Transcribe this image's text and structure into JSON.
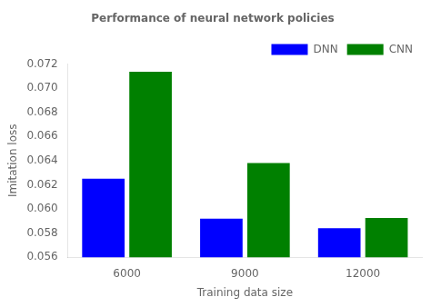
{
  "chart_data": {
    "type": "bar",
    "title": "Performance of neural network policies",
    "xlabel": "Training data size",
    "ylabel": "Imitation loss",
    "categories": [
      "6000",
      "9000",
      "12000"
    ],
    "series": [
      {
        "name": "DNN",
        "color": "#0000ff",
        "values": [
          0.0625,
          0.0592,
          0.0584
        ]
      },
      {
        "name": "CNN",
        "color": "#008000",
        "values": [
          0.07135,
          0.0638,
          0.05925
        ]
      }
    ],
    "ylim": [
      0.056,
      0.072
    ],
    "yticks": [
      0.056,
      0.058,
      {
        "value": 0.06,
        "label": "0.060"
      },
      0.062,
      0.064,
      0.066,
      0.068,
      {
        "value": 0.07,
        "label": "0.070"
      },
      0.072
    ],
    "grid": false,
    "legend": "upper right"
  }
}
